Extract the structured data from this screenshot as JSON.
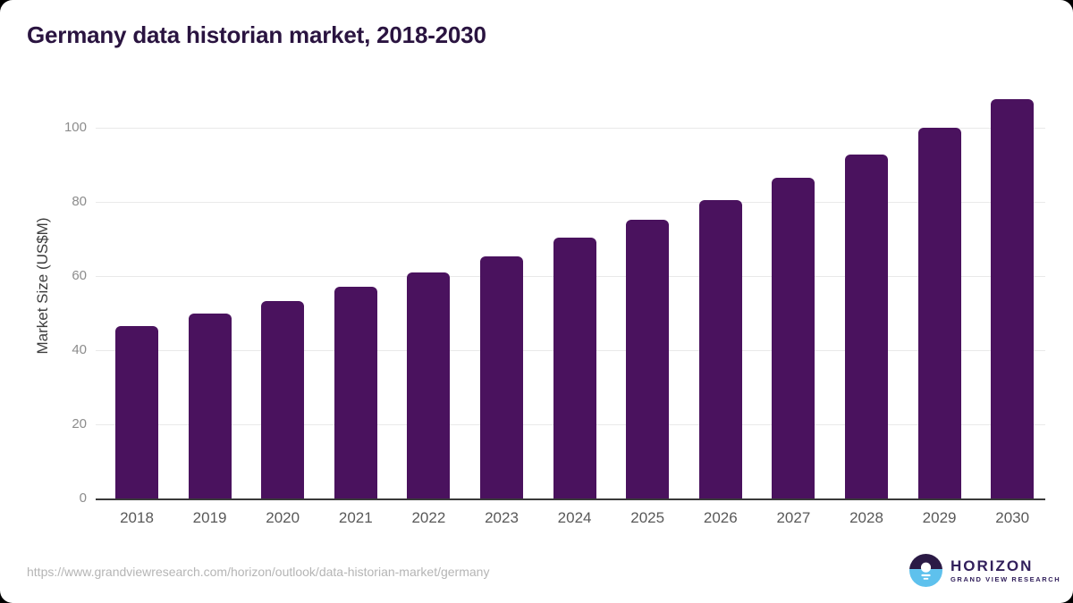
{
  "title": "Germany data historian market, 2018-2030",
  "chart_data": {
    "type": "bar",
    "title": "Germany data historian market, 2018-2030",
    "categories": [
      "2018",
      "2019",
      "2020",
      "2021",
      "2022",
      "2023",
      "2024",
      "2025",
      "2026",
      "2027",
      "2028",
      "2029",
      "2030"
    ],
    "values": [
      46.4,
      49.9,
      53.2,
      57.0,
      60.8,
      65.3,
      70.3,
      75.1,
      80.5,
      86.5,
      92.7,
      100.0,
      107.5
    ],
    "xlabel": "",
    "ylabel": "Market Size (US$M)",
    "ylim": [
      0,
      110
    ],
    "yticks": [
      0,
      20,
      40,
      60,
      80,
      100
    ],
    "grid": "horizontal",
    "legend": "none",
    "bar_color": "#4a125e",
    "gridline_color": "#e9e9e9",
    "axis_line_color": "#3a3a3a"
  },
  "footer": {
    "source_url": "https://www.grandviewresearch.com/horizon/outlook/data-historian-market/germany"
  },
  "logo": {
    "brand": "HORIZON",
    "subtitle": "GRAND VIEW RESEARCH",
    "purple": "#2b1a45",
    "blue": "#5ec1ed"
  },
  "colors": {
    "title": "#2a1440",
    "xtick": "#595959",
    "ytick": "#8c8c8c"
  }
}
